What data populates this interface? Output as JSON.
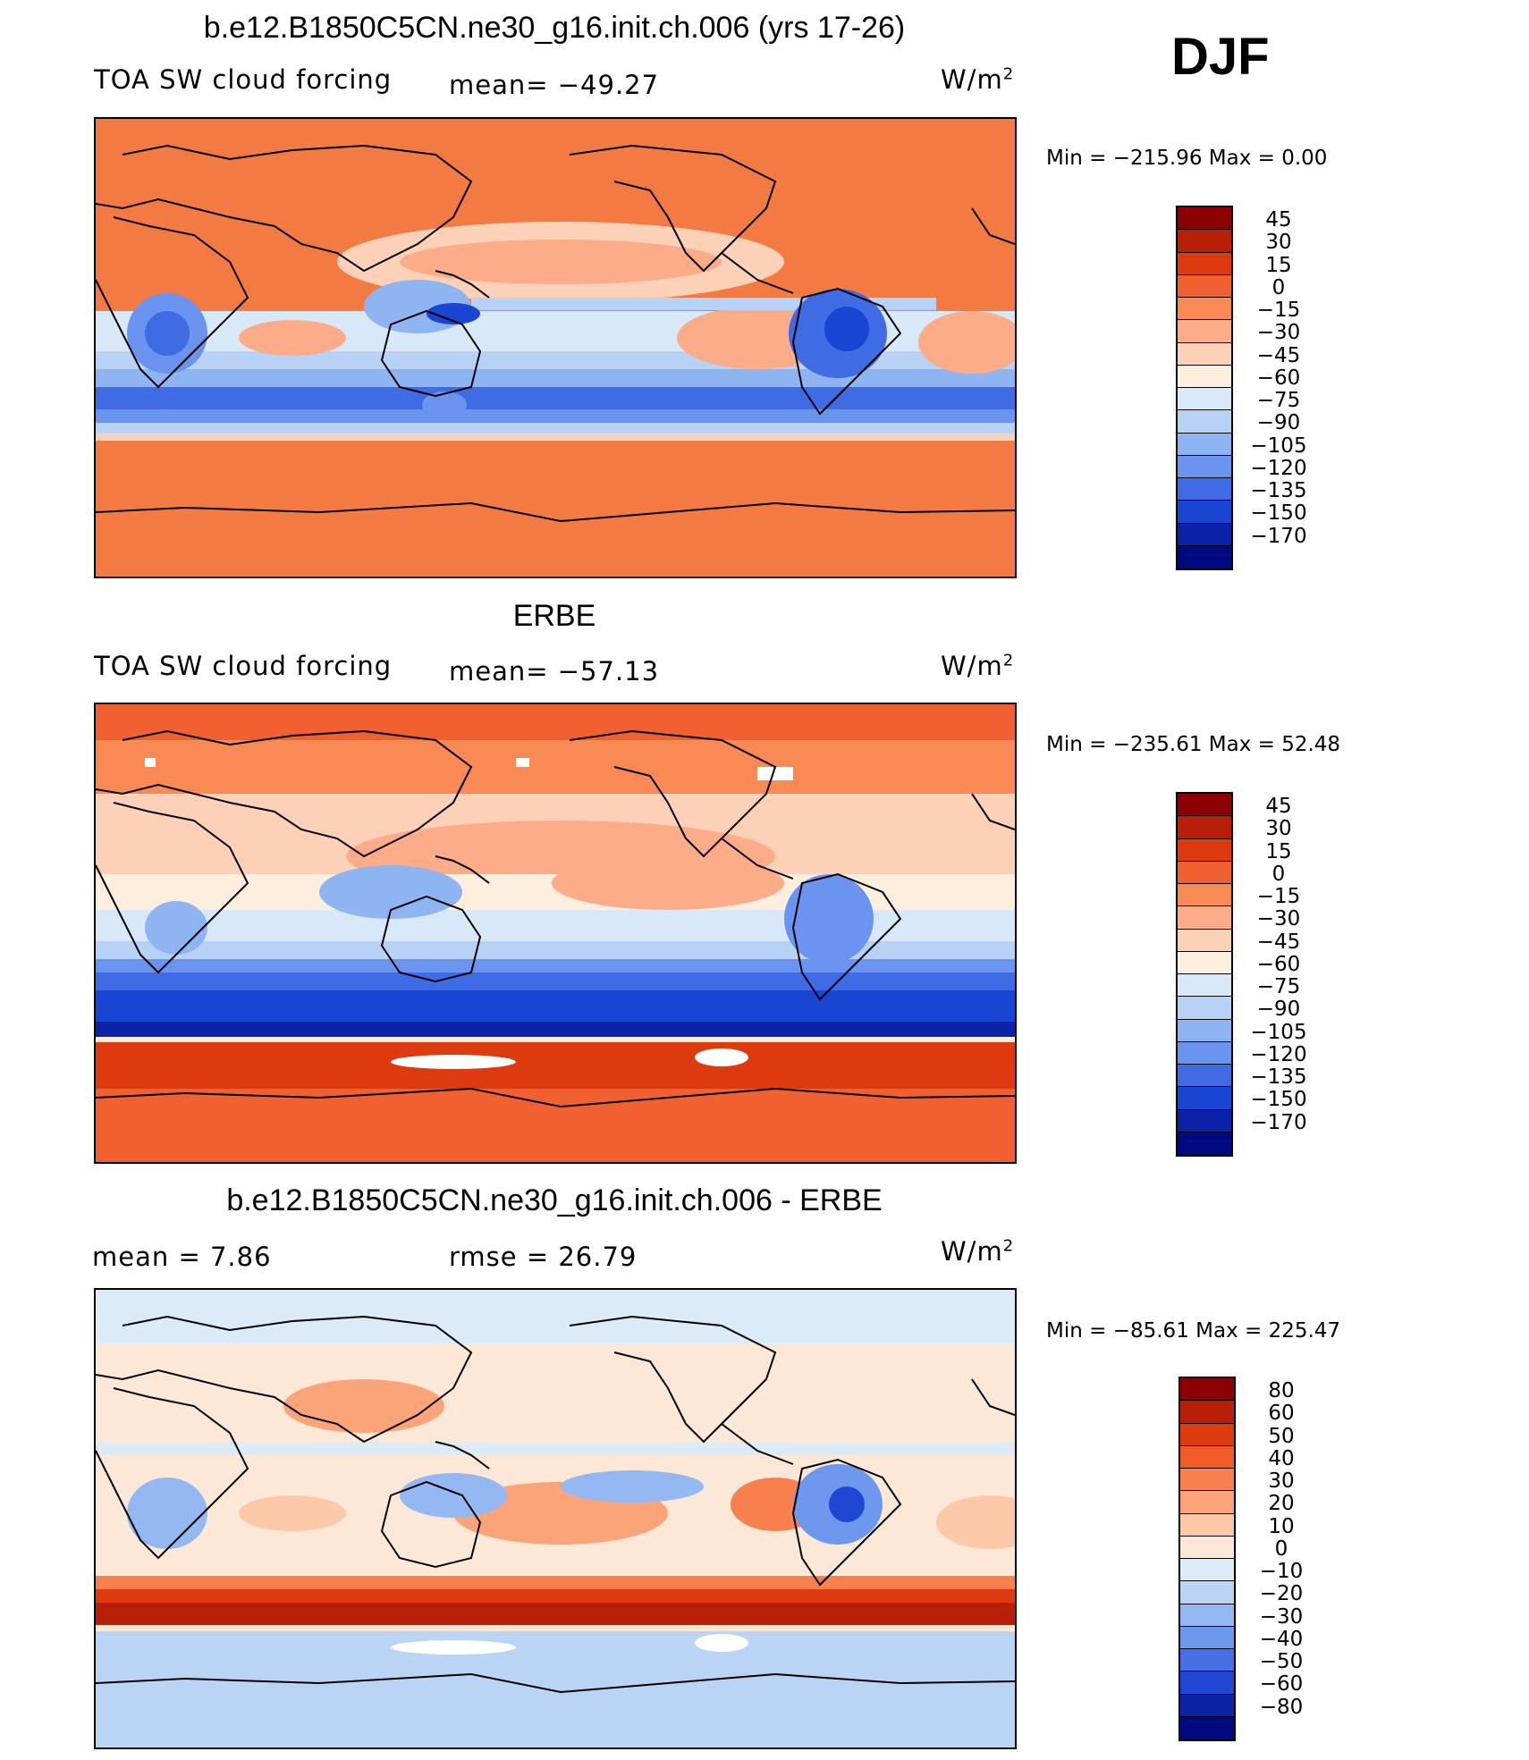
{
  "header": {
    "season": "DJF"
  },
  "chart_data": [
    {
      "type": "heatmap",
      "title": "b.e12.B1850C5CN.ne30_g16.init.ch.006 (yrs 17-26)",
      "variable": "TOA SW cloud forcing",
      "stat_text": "mean= −49.27",
      "units": "W/m",
      "units_exp": "2",
      "minmax_text": "Min  =  −215.96  Max  =     0.00",
      "colorbar": {
        "labels": [
          "45",
          "30",
          "15",
          "0",
          "−15",
          "−30",
          "−45",
          "−60",
          "−75",
          "−90",
          "−105",
          "−120",
          "−135",
          "−150",
          "−170"
        ],
        "colors": [
          "#8b0000",
          "#b81e08",
          "#dd3a10",
          "#f06030",
          "#f98a55",
          "#fcac88",
          "#fdd0b8",
          "#fdeedd",
          "#d8e8f8",
          "#b8d2f6",
          "#8eb4f2",
          "#6a94ef",
          "#3f6be4",
          "#1a44d2",
          "#0a22a8",
          "#000a80"
        ]
      }
    },
    {
      "type": "heatmap",
      "title": "ERBE",
      "variable": "TOA SW cloud forcing",
      "stat_text": "mean= −57.13",
      "units": "W/m",
      "units_exp": "2",
      "minmax_text": "Min  =  −235.61  Max  =   52.48",
      "colorbar": {
        "labels": [
          "45",
          "30",
          "15",
          "0",
          "−15",
          "−30",
          "−45",
          "−60",
          "−75",
          "−90",
          "−105",
          "−120",
          "−135",
          "−150",
          "−170"
        ],
        "colors": [
          "#8b0000",
          "#b81e08",
          "#dd3a10",
          "#f06030",
          "#f98a55",
          "#fcac88",
          "#fdd0b8",
          "#fdeedd",
          "#d8e8f8",
          "#b8d2f6",
          "#8eb4f2",
          "#6a94ef",
          "#3f6be4",
          "#1a44d2",
          "#0a22a8",
          "#000a80"
        ]
      }
    },
    {
      "type": "heatmap",
      "title": "b.e12.B1850C5CN.ne30_g16.init.ch.006 - ERBE",
      "mean_text": "mean  =     7.86",
      "rmse_text": "rmse  =    26.79",
      "units": "W/m",
      "units_exp": "2",
      "minmax_text": "Min  =  −85.61  Max  =  225.47",
      "colorbar": {
        "labels": [
          "80",
          "60",
          "50",
          "40",
          "30",
          "20",
          "10",
          "0",
          "−10",
          "−20",
          "−30",
          "−40",
          "−50",
          "−60",
          "−80"
        ],
        "colors": [
          "#8b0000",
          "#b81e08",
          "#dd3a10",
          "#f25a28",
          "#f7804e",
          "#fba47a",
          "#fdc8a8",
          "#fde8d8",
          "#dcebf8",
          "#bad4f6",
          "#94b8f2",
          "#6e98ee",
          "#4870e6",
          "#1e48d4",
          "#0a24a8",
          "#000a80"
        ]
      }
    }
  ]
}
